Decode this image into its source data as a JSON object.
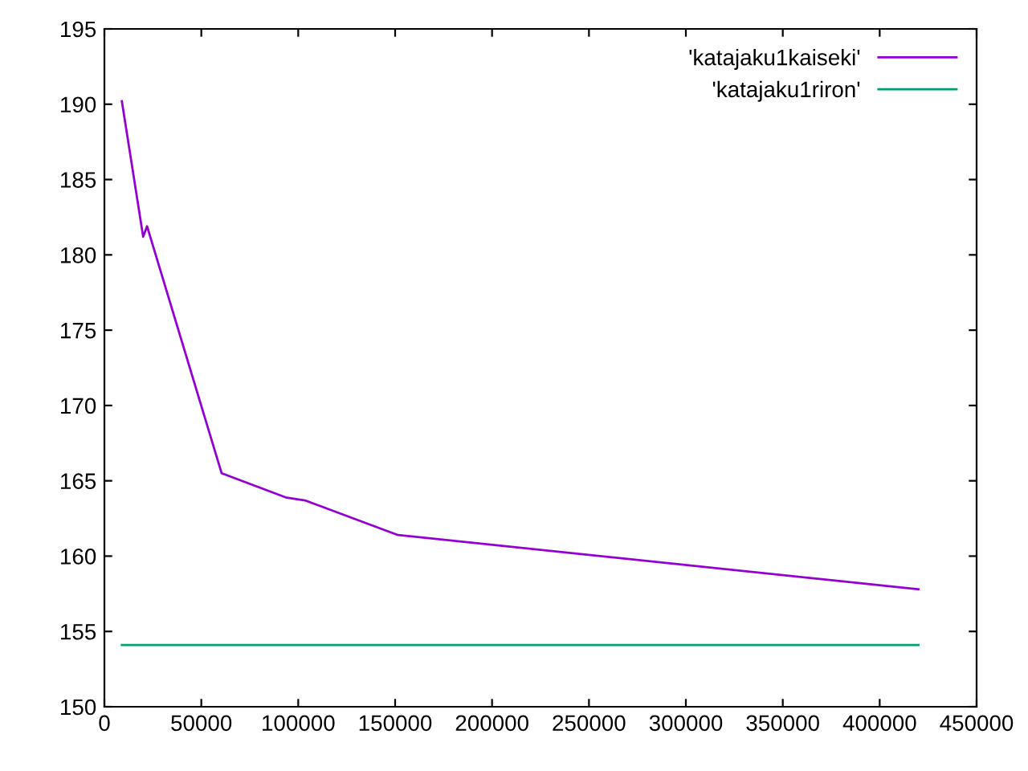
{
  "chart_data": {
    "type": "line",
    "series": [
      {
        "name": "'katajaku1kaiseki'",
        "color": "#9400d3",
        "x": [
          9000,
          20000,
          22000,
          60500,
          93500,
          103500,
          151500,
          420000
        ],
        "values": [
          190.2,
          181.2,
          181.9,
          165.5,
          163.9,
          163.7,
          161.4,
          157.8
        ]
      },
      {
        "name": "'katajaku1riron'",
        "color": "#009e73",
        "x": [
          9000,
          420000
        ],
        "values": [
          154.1,
          154.1
        ]
      }
    ],
    "xlim": [
      0,
      450000
    ],
    "xticks": [
      0,
      50000,
      100000,
      150000,
      200000,
      250000,
      300000,
      350000,
      400000,
      450000
    ],
    "ylim": [
      150,
      195
    ],
    "yticks": [
      150,
      155,
      160,
      165,
      170,
      175,
      180,
      185,
      190,
      195
    ],
    "grid": false,
    "legend": "top right",
    "marker": "none",
    "line_style": "solid"
  }
}
